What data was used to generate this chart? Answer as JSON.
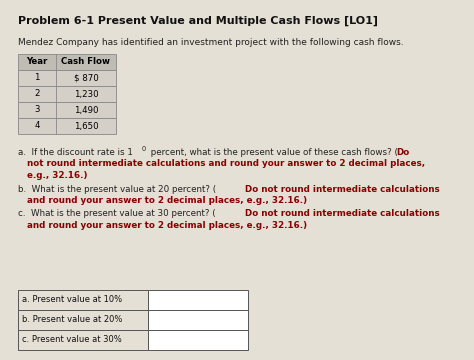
{
  "title": "Problem 6-1 Present Value and Multiple Cash Flows [LO1]",
  "intro": "Mendez Company has identified an investment project with the following cash flows.",
  "table_headers": [
    "Year",
    "Cash Flow"
  ],
  "table_years": [
    "1",
    "2",
    "3",
    "4"
  ],
  "table_cashflows": [
    "$ 870",
    "1,230",
    "1,490",
    "1,650"
  ],
  "answer_labels": [
    "a. Present value at 10%",
    "b. Present value at 20%",
    "c. Present value at 30%"
  ],
  "bg_color": "#e5e0d5",
  "table_header_bg": "#bfbcb4",
  "table_row_bg": "#d4d0c8",
  "answer_box_bg": "#ffffff",
  "answer_label_bg": "#e5e0d5",
  "answer_box_border": "#555555",
  "title_color": "#111111",
  "text_color": "#222222",
  "bold_color": "#8b0000",
  "table_border": "#888888"
}
